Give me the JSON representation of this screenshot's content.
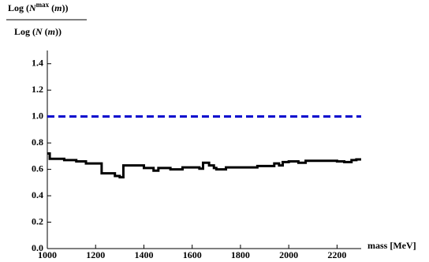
{
  "chart_data": {
    "type": "line",
    "ylabel": {
      "numerator": [
        "Log (",
        "N",
        "max",
        " (",
        "m",
        "))"
      ],
      "denominator": [
        "Log (",
        "N",
        " (",
        "m",
        "))"
      ]
    },
    "xlabel": "mass [MeV]",
    "xlim": [
      1000,
      2300
    ],
    "ylim": [
      0,
      1.5
    ],
    "xticks": [
      1000,
      1200,
      1400,
      1600,
      1800,
      2000,
      2200
    ],
    "yticks": [
      {
        "value": 0,
        "label": "0.0"
      },
      {
        "value": 0.2,
        "label": "0.2"
      },
      {
        "value": 0.4,
        "label": "0.4"
      },
      {
        "value": 0.6,
        "label": "0.6"
      },
      {
        "value": 0.8,
        "label": "0.8"
      },
      {
        "value": 1.0,
        "label": "1.0"
      },
      {
        "value": 1.2,
        "label": "1.2"
      },
      {
        "value": 1.4,
        "label": "1.4"
      }
    ],
    "hline": {
      "value": 1.0,
      "color": "#0000cc",
      "dashed": true
    },
    "series": [
      {
        "color": "#000000",
        "x": [
          1000,
          1010,
          1010,
          1070,
          1070,
          1120,
          1120,
          1160,
          1160,
          1225,
          1225,
          1280,
          1280,
          1300,
          1300,
          1315,
          1315,
          1400,
          1400,
          1440,
          1440,
          1460,
          1460,
          1510,
          1510,
          1560,
          1560,
          1630,
          1630,
          1645,
          1645,
          1670,
          1670,
          1690,
          1690,
          1700,
          1700,
          1740,
          1740,
          1870,
          1870,
          1940,
          1940,
          1960,
          1960,
          1975,
          1975,
          2000,
          2000,
          2040,
          2040,
          2070,
          2070,
          2200,
          2200,
          2230,
          2230,
          2260,
          2260,
          2280,
          2280,
          2300
        ],
        "values": [
          0.72,
          0.72,
          0.68,
          0.68,
          0.67,
          0.67,
          0.66,
          0.66,
          0.645,
          0.645,
          0.57,
          0.57,
          0.55,
          0.55,
          0.54,
          0.54,
          0.63,
          0.63,
          0.61,
          0.61,
          0.59,
          0.59,
          0.61,
          0.61,
          0.6,
          0.6,
          0.615,
          0.615,
          0.605,
          0.605,
          0.65,
          0.65,
          0.63,
          0.63,
          0.61,
          0.61,
          0.6,
          0.6,
          0.615,
          0.615,
          0.625,
          0.625,
          0.645,
          0.645,
          0.63,
          0.63,
          0.655,
          0.655,
          0.66,
          0.66,
          0.65,
          0.65,
          0.665,
          0.665,
          0.66,
          0.66,
          0.655,
          0.655,
          0.67,
          0.67,
          0.675,
          0.675
        ]
      }
    ]
  }
}
